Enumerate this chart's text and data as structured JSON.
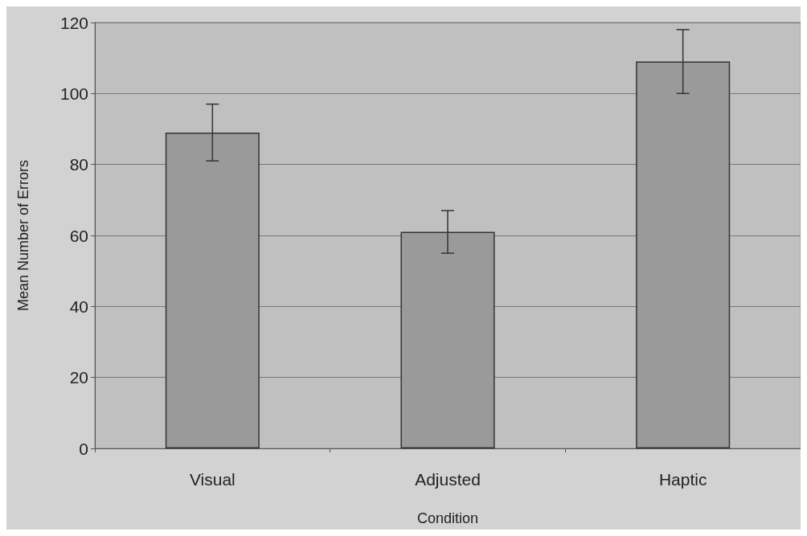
{
  "chart_data": {
    "type": "bar",
    "xlabel": "Condition",
    "ylabel": "Mean Number of Errors",
    "categories": [
      "Visual",
      "Adjusted",
      "Haptic"
    ],
    "values": [
      89,
      61,
      109
    ],
    "errors": [
      8,
      6,
      9
    ],
    "color": "#9a9a9a",
    "ylim": [
      0,
      120
    ],
    "yticks": [
      0,
      20,
      40,
      60,
      80,
      100,
      120
    ],
    "grid": "y"
  }
}
